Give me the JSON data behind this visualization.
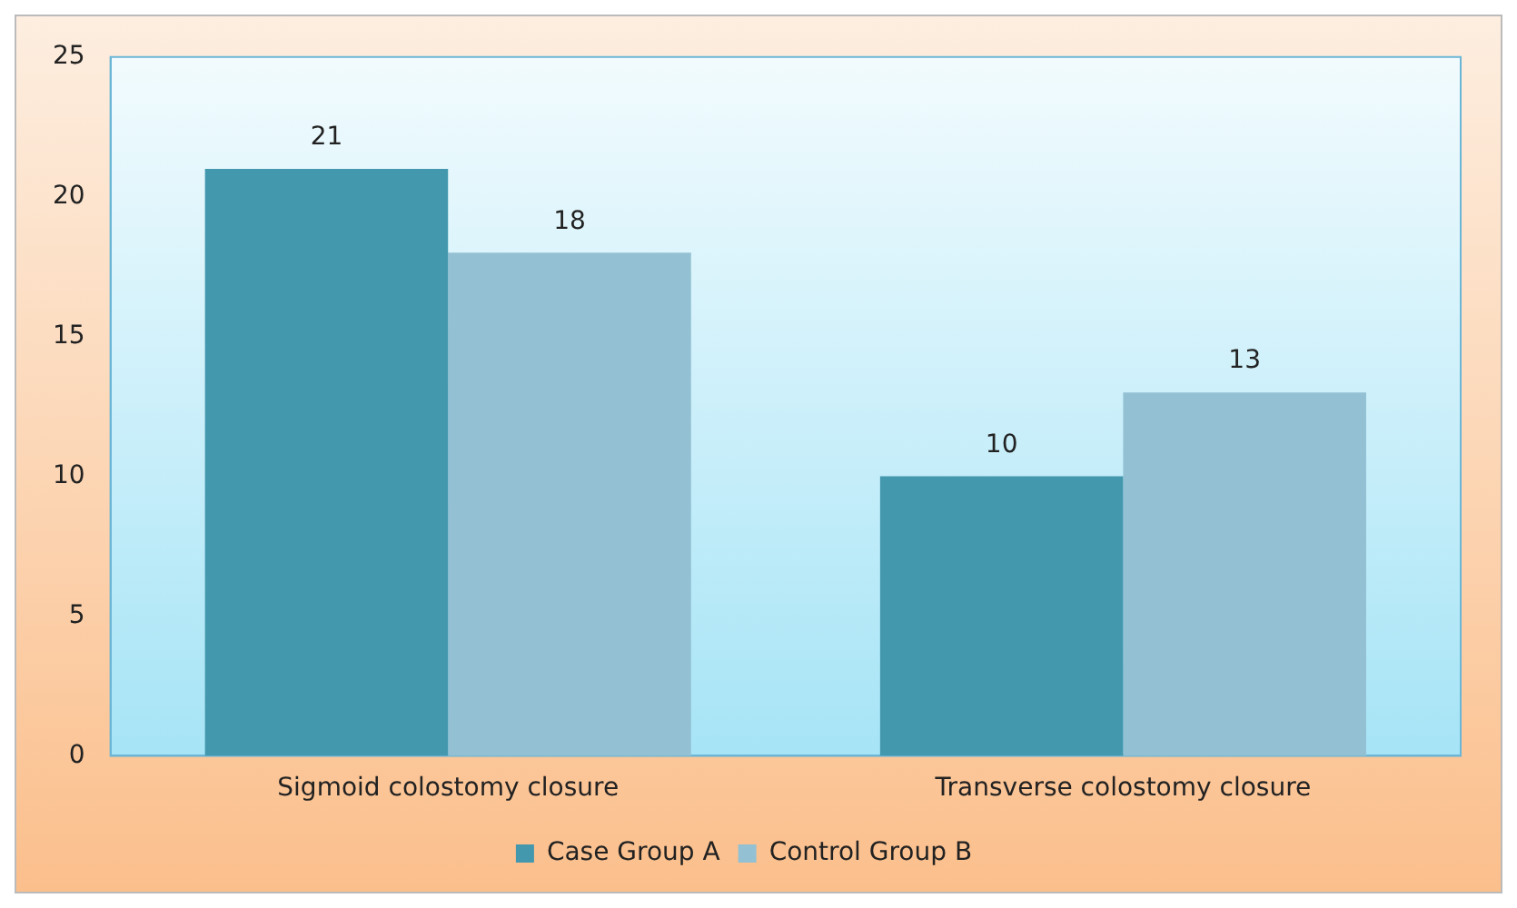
{
  "chart_data": {
    "type": "bar",
    "categories": [
      "Sigmoid colostomy closure",
      "Transverse colostomy closure"
    ],
    "series": [
      {
        "name": "Case Group A",
        "color": "#4398ae",
        "values": [
          21,
          10
        ]
      },
      {
        "name": "Control Group B",
        "color": "#93c1d3",
        "values": [
          18,
          13
        ]
      }
    ],
    "ylim": [
      0,
      25
    ],
    "yticks": [
      0,
      5,
      10,
      15,
      20,
      25
    ],
    "grid": false,
    "legend": "bottom",
    "data_labels": true
  }
}
